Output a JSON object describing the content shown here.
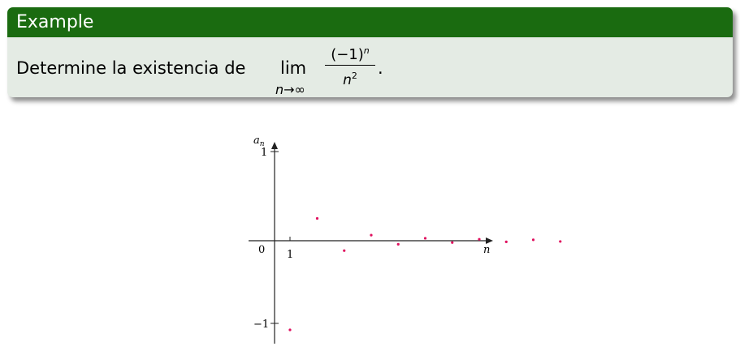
{
  "block": {
    "title": "Example",
    "statement_text": "Determine la existencia de",
    "lim_word": "lim",
    "lim_subscript": "n→∞",
    "numerator": "(−1)",
    "numerator_exp": "n",
    "denominator": "n",
    "denominator_exp": "2",
    "period": "."
  },
  "colors": {
    "header": "#1a6b10",
    "body": "#e4ebe4",
    "points": "#e0115f"
  },
  "chart_data": {
    "type": "scatter",
    "title": "",
    "xlabel": "n",
    "ylabel": "a_n",
    "x_tick_labels": [
      "1"
    ],
    "y_tick_labels": [
      "1",
      "−1"
    ],
    "origin_label": "0",
    "xlim": [
      0,
      11.3
    ],
    "ylim": [
      -1.1,
      1.1
    ],
    "grid": false,
    "series": [
      {
        "x": [
          1,
          2,
          3,
          4,
          5,
          6,
          7,
          8,
          9,
          10,
          11
        ],
        "y": [
          -1,
          0.25,
          -0.111,
          0.0625,
          -0.04,
          0.0278,
          -0.0204,
          0.0156,
          -0.0123,
          0.01,
          -0.0083
        ]
      }
    ]
  }
}
